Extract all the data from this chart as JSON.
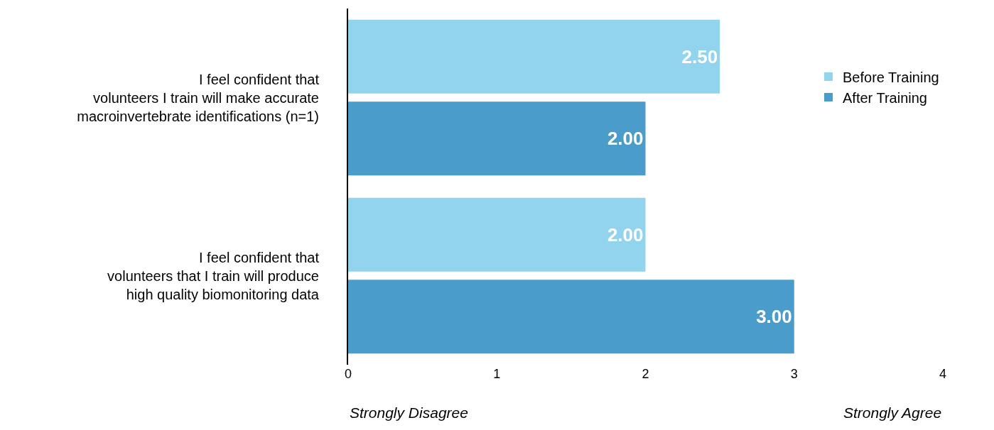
{
  "chart_data": {
    "type": "bar",
    "orientation": "horizontal",
    "categories": [
      "I feel confident that\nvolunteers I train will make accurate\nmacroinvertebrate identifications (n=1)",
      "I feel confident that\nvolunteers that I train will produce\nhigh quality biomonitoring data"
    ],
    "series": [
      {
        "name": "Before Training",
        "color": "#92d3ee",
        "values": [
          2.5,
          2.0
        ],
        "value_labels": [
          "2.50",
          "2.00"
        ]
      },
      {
        "name": "After Training",
        "color": "#4a9cca",
        "values": [
          2.0,
          3.0
        ],
        "value_labels": [
          "2.00",
          "3.00"
        ]
      }
    ],
    "xlim": [
      0,
      4
    ],
    "xticks": [
      0,
      1,
      2,
      3,
      4
    ],
    "legend": "right",
    "annotations": [
      "Strongly Disagree",
      "Strongly Agree"
    ]
  }
}
